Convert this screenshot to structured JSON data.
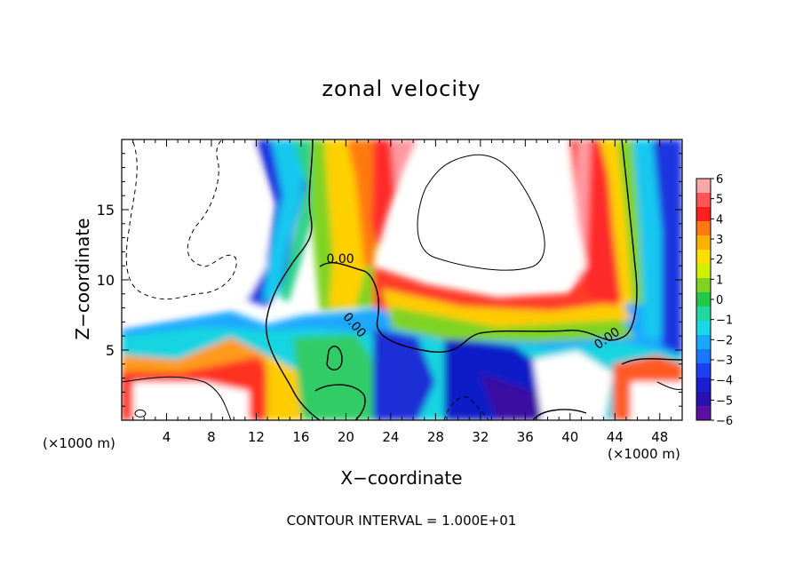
{
  "chart_data": {
    "type": "heatmap",
    "title": "zonal velocity",
    "xlabel": "X−coordinate",
    "ylabel": "Z−coordinate",
    "x_unit": "(×1000 m)",
    "x_ticks": [
      4,
      8,
      12,
      16,
      20,
      24,
      28,
      32,
      36,
      40,
      44,
      48
    ],
    "y_ticks": [
      5,
      10,
      15
    ],
    "xlim": [
      0,
      50
    ],
    "ylim": [
      0,
      20
    ],
    "colorbar": {
      "ticks": [
        6,
        5,
        4,
        3,
        2,
        1,
        0,
        -1,
        -2,
        -3,
        -4,
        -5,
        -6
      ],
      "tick_labels": [
        "6",
        "5",
        "4",
        "3",
        "2",
        "1",
        "0",
        "−1",
        "−2",
        "−3",
        "−4",
        "−5",
        "−6"
      ],
      "range": [
        -6,
        6
      ]
    },
    "contour_labels": [
      {
        "text": "0.00",
        "x": 19.5,
        "z": 11.2,
        "rotate": 0
      },
      {
        "text": "0.00",
        "x": 20.5,
        "z": 6.6,
        "rotate": 50
      },
      {
        "text": "0.00",
        "x": 43.5,
        "z": 5.6,
        "rotate": -35
      }
    ],
    "contour_interval_text": "CONTOUR INTERVAL = 1.000E+01",
    "grid": false,
    "legend": "colorbar right"
  }
}
